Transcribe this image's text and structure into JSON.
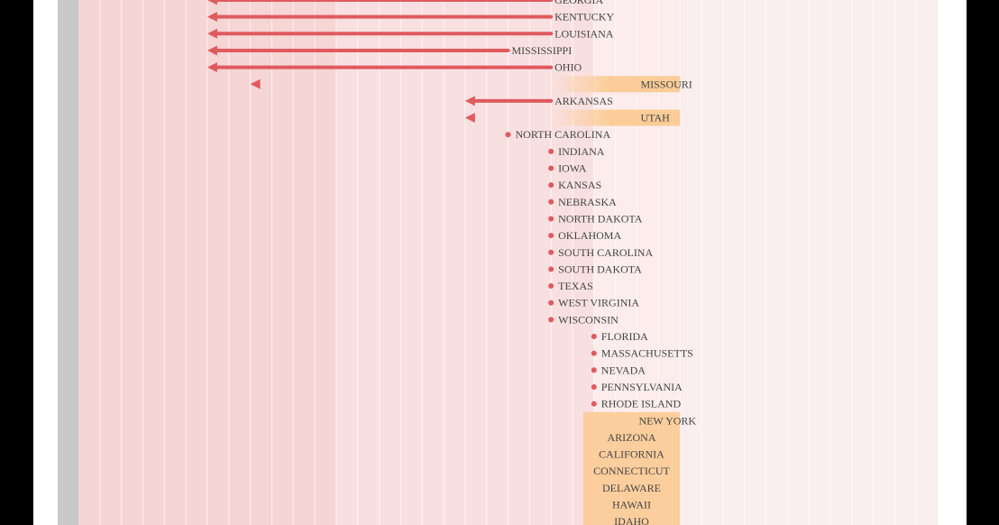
{
  "chart_data": {
    "type": "arrow-range",
    "title": "",
    "xlabel": "",
    "ylabel": "",
    "grid": true,
    "x_domain": [
      0,
      40
    ],
    "rows": [
      {
        "state": "GEORGIA",
        "start": 22,
        "end": 6,
        "kind": "arrow"
      },
      {
        "state": "KENTUCKY",
        "start": 22,
        "end": 6,
        "kind": "arrow"
      },
      {
        "state": "LOUISIANA",
        "start": 22,
        "end": 6,
        "kind": "arrow"
      },
      {
        "state": "MISSISSIPPI",
        "start": 20,
        "end": 6,
        "kind": "arrow"
      },
      {
        "state": "OHIO",
        "start": 22,
        "end": 6,
        "kind": "arrow"
      },
      {
        "state": "MISSOURI",
        "start": 26,
        "end": 8,
        "kind": "arrow",
        "highlight": true
      },
      {
        "state": "ARKANSAS",
        "start": 22,
        "end": 18,
        "kind": "arrow"
      },
      {
        "state": "UTAH",
        "start": 26,
        "end": 18,
        "kind": "arrow",
        "highlight": true
      },
      {
        "state": "NORTH CAROLINA",
        "start": 20,
        "end": 20,
        "kind": "dot"
      },
      {
        "state": "INDIANA",
        "start": 22,
        "end": 22,
        "kind": "dot"
      },
      {
        "state": "IOWA",
        "start": 22,
        "end": 22,
        "kind": "dot"
      },
      {
        "state": "KANSAS",
        "start": 22,
        "end": 22,
        "kind": "dot"
      },
      {
        "state": "NEBRASKA",
        "start": 22,
        "end": 22,
        "kind": "dot"
      },
      {
        "state": "NORTH DAKOTA",
        "start": 22,
        "end": 22,
        "kind": "dot"
      },
      {
        "state": "OKLAHOMA",
        "start": 22,
        "end": 22,
        "kind": "dot"
      },
      {
        "state": "SOUTH CAROLINA",
        "start": 22,
        "end": 22,
        "kind": "dot"
      },
      {
        "state": "SOUTH DAKOTA",
        "start": 22,
        "end": 22,
        "kind": "dot"
      },
      {
        "state": "TEXAS",
        "start": 22,
        "end": 22,
        "kind": "dot"
      },
      {
        "state": "WEST VIRGINIA",
        "start": 22,
        "end": 22,
        "kind": "dot"
      },
      {
        "state": "WISCONSIN",
        "start": 22,
        "end": 22,
        "kind": "dot"
      },
      {
        "state": "FLORIDA",
        "start": 24,
        "end": 24,
        "kind": "dot"
      },
      {
        "state": "MASSACHUSETTS",
        "start": 24,
        "end": 24,
        "kind": "dot"
      },
      {
        "state": "NEVADA",
        "start": 24,
        "end": 24,
        "kind": "dot"
      },
      {
        "state": "PENNSYLVANIA",
        "start": 24,
        "end": 24,
        "kind": "dot"
      },
      {
        "state": "RHODE ISLAND",
        "start": 24,
        "end": 24,
        "kind": "dot"
      },
      {
        "state": "NEW YORK",
        "start": 24,
        "end": 26,
        "kind": "gradient-line",
        "highlight": true
      },
      {
        "state": "ARIZONA",
        "kind": "label-only",
        "highlight": true
      },
      {
        "state": "CALIFORNIA",
        "kind": "label-only",
        "highlight": true
      },
      {
        "state": "CONNECTICUT",
        "kind": "label-only",
        "highlight": true
      },
      {
        "state": "DELAWARE",
        "kind": "label-only",
        "highlight": true
      },
      {
        "state": "HAWAII",
        "kind": "label-only",
        "highlight": true
      },
      {
        "state": "IDAHO",
        "kind": "label-only",
        "highlight": true
      }
    ]
  },
  "colors": {
    "frame": "#000000",
    "page": "#ffffff",
    "left_rule": "#c8c8c8",
    "band_dark": "#f6d5d5",
    "band_mid": "#f9e0e0",
    "band_light": "#fcecec",
    "band_faint": "#faeeee",
    "grid_line": "#ffffff",
    "arrow": "#e05a5e",
    "arrow_light": "#f2b09a",
    "highlight_band": "#fbc98f",
    "highlight_soft": "#fde3c4",
    "text": "#444444"
  }
}
